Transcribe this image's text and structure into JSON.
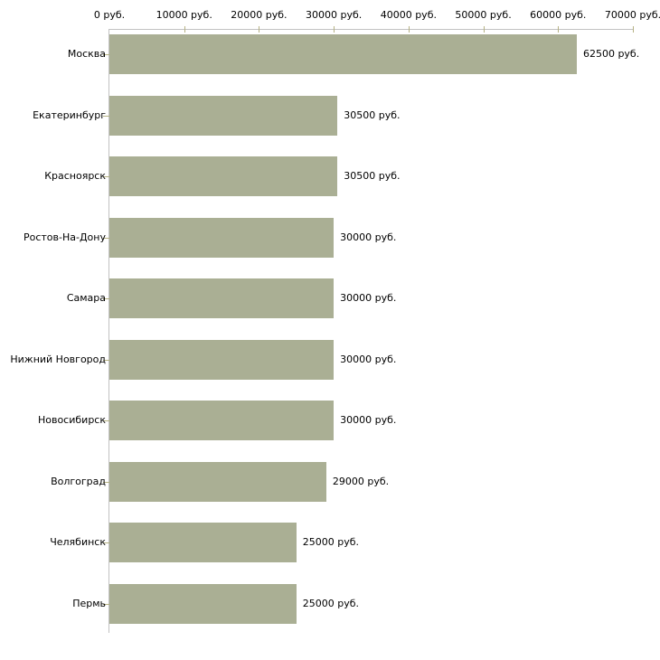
{
  "chart_data": {
    "type": "bar",
    "orientation": "horizontal",
    "title": "",
    "xlabel": "",
    "ylabel": "",
    "unit_suffix": " руб.",
    "categories": [
      "Москва",
      "Екатеринбург",
      "Красноярск",
      "Ростов-На-Дону",
      "Самара",
      "Нижний Новгород",
      "Новосибирск",
      "Волгоград",
      "Челябинск",
      "Пермь"
    ],
    "values": [
      62500,
      30500,
      30500,
      30000,
      30000,
      30000,
      30000,
      29000,
      25000,
      25000
    ],
    "value_labels": [
      "62500 руб.",
      "30500 руб.",
      "30500 руб.",
      "30000 руб.",
      "30000 руб.",
      "30000 руб.",
      "30000 руб.",
      "29000 руб.",
      "25000 руб.",
      "25000 руб."
    ],
    "xlim": [
      0,
      70000
    ],
    "x_ticks": [
      0,
      10000,
      20000,
      30000,
      40000,
      50000,
      60000,
      70000
    ],
    "x_tick_labels": [
      "0 руб.",
      "10000 руб.",
      "20000 руб.",
      "30000 руб.",
      "40000 руб.",
      "50000 руб.",
      "60000 руб.",
      "70000 руб."
    ],
    "grid": false,
    "legend": null,
    "axis_position": "top",
    "colors": {
      "bar": "#aaaf94",
      "axis_line": "#c2c2c2",
      "tick_mark": "#b5b183",
      "text": "#000000",
      "background": "#ffffff"
    }
  }
}
